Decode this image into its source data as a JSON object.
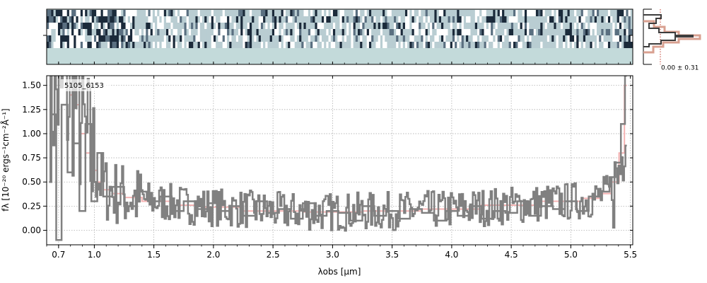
{
  "chart_data": [
    {
      "type": "heatmap",
      "panel": "2d-spectrum",
      "rows_signal": 6,
      "rows_total": 9,
      "x_range": [
        0.6,
        5.5
      ],
      "colormap": [
        "#1b2a3a",
        "#5a6f80",
        "#b9cdd2",
        "#ffffff"
      ],
      "background_color": "#c3dada"
    },
    {
      "type": "line",
      "panel": "1d-spectrum",
      "label": "5105_6153",
      "xlabel": "λobs [μm]",
      "ylabel": "fλ [10⁻²⁰ ergs⁻¹cm⁻²Å⁻¹]",
      "xlim": [
        0.6,
        5.52
      ],
      "ylim": [
        -0.15,
        1.6
      ],
      "x_ticks": [
        0.7,
        1.0,
        1.5,
        2.0,
        2.5,
        3.0,
        3.5,
        4.0,
        4.5,
        5.0,
        5.5
      ],
      "x_tick_labels": [
        "0.7",
        "1.0",
        "1.5",
        "2.0",
        "2.5",
        "3.0",
        "3.5",
        "4.0",
        "4.5",
        "5.0",
        "5.5"
      ],
      "y_ticks": [
        0.0,
        0.25,
        0.5,
        0.75,
        1.0,
        1.25,
        1.5
      ],
      "y_tick_labels": [
        "0.00",
        "0.25",
        "0.50",
        "0.75",
        "1.00",
        "1.25",
        "1.50"
      ],
      "grid": true,
      "series": [
        {
          "color": "#808080",
          "style": "step",
          "description": "observed flux",
          "x": [
            0.62,
            0.66,
            0.7,
            0.75,
            0.8,
            0.85,
            0.9,
            0.95,
            1.0,
            1.05,
            1.1,
            1.2,
            1.3,
            1.4,
            1.5,
            1.6,
            1.7,
            1.8,
            1.9,
            2.0,
            2.1,
            2.2,
            2.3,
            2.4,
            2.5,
            2.6,
            2.7,
            2.8,
            2.9,
            3.0,
            3.1,
            3.2,
            3.3,
            3.4,
            3.5,
            3.6,
            3.7,
            3.8,
            3.9,
            4.0,
            4.1,
            4.2,
            4.3,
            4.4,
            4.5,
            4.6,
            4.7,
            4.8,
            4.9,
            5.0,
            5.1,
            5.2,
            5.3,
            5.35,
            5.4,
            5.44,
            5.47
          ],
          "y": [
            0.5,
            1.2,
            -0.1,
            1.3,
            0.6,
            0.9,
            0.2,
            1.1,
            0.3,
            0.8,
            0.35,
            0.45,
            0.25,
            0.4,
            0.3,
            0.35,
            0.2,
            0.3,
            0.22,
            0.28,
            0.2,
            0.25,
            0.15,
            0.3,
            0.18,
            0.22,
            0.12,
            0.28,
            0.15,
            0.2,
            0.18,
            0.1,
            0.25,
            0.15,
            0.2,
            0.12,
            0.22,
            0.18,
            0.1,
            0.2,
            0.15,
            0.25,
            0.12,
            0.2,
            0.18,
            0.3,
            0.15,
            0.25,
            0.22,
            0.3,
            0.2,
            0.35,
            0.4,
            0.55,
            0.7,
            1.1,
            1.6
          ]
        },
        {
          "color": "#f4a6a6",
          "style": "step",
          "description": "model",
          "x": [
            0.8,
            0.85,
            0.9,
            0.95,
            1.0,
            1.05,
            1.1,
            1.2,
            1.3,
            1.5,
            1.8,
            2.0,
            2.5,
            3.0,
            3.5,
            4.0,
            4.5,
            5.0,
            5.2,
            5.3,
            5.38,
            5.43,
            5.47
          ],
          "y": [
            1.4,
            1.3,
            1.0,
            0.8,
            0.62,
            0.5,
            0.42,
            0.38,
            0.34,
            0.3,
            0.26,
            0.24,
            0.2,
            0.19,
            0.2,
            0.22,
            0.26,
            0.3,
            0.33,
            0.38,
            0.5,
            0.8,
            1.5
          ]
        }
      ]
    },
    {
      "type": "histogram",
      "panel": "residual-histogram",
      "annotation": "0.00 ± 0.31"
    }
  ]
}
